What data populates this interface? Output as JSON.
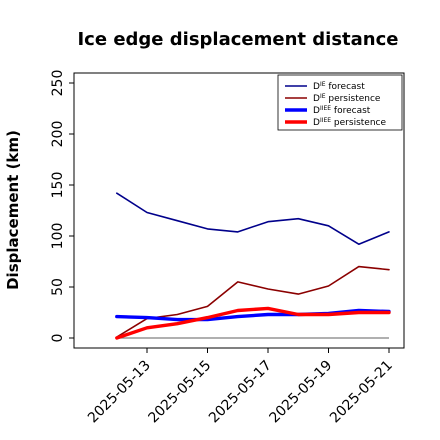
{
  "chart_data": {
    "type": "line",
    "title": "Ice edge displacement distance",
    "ylabel": "Displacement (km)",
    "xlabel": "",
    "ylim": [
      0,
      250
    ],
    "yticks": [
      0,
      50,
      100,
      150,
      200,
      250
    ],
    "x": [
      "2025-05-12",
      "2025-05-13",
      "2025-05-14",
      "2025-05-15",
      "2025-05-16",
      "2025-05-17",
      "2025-05-18",
      "2025-05-19",
      "2025-05-20",
      "2025-05-21"
    ],
    "xticks": [
      {
        "date": "2025-05-13",
        "label": "2025-05-13",
        "color": "#228B22"
      },
      {
        "date": "2025-05-15",
        "label": "2025-05-15",
        "color": "#000000"
      },
      {
        "date": "2025-05-17",
        "label": "2025-05-17",
        "color": "#000000"
      },
      {
        "date": "2025-05-19",
        "label": "2025-05-19",
        "color": "#000000"
      },
      {
        "date": "2025-05-21",
        "label": "2025-05-21",
        "color": "#000000"
      }
    ],
    "grid": false,
    "legend_position": "top-right",
    "series": [
      {
        "key": "die_forecast",
        "label_main": "D",
        "label_sup": "IE",
        "label_rest": " forecast",
        "color": "#00008B",
        "width": 1.6,
        "values": [
          142,
          123,
          115,
          107,
          104,
          114,
          117,
          110,
          92,
          104
        ]
      },
      {
        "key": "die_persistence",
        "label_main": "D",
        "label_sup": "IE",
        "label_rest": " persistence",
        "color": "#8B0000",
        "width": 1.6,
        "values": [
          1,
          19,
          23,
          31,
          55,
          48,
          43,
          51,
          70,
          67
        ]
      },
      {
        "key": "diee_forecast",
        "label_main": "D",
        "label_sup": "IIEE",
        "label_rest": " forecast",
        "color": "#0000FF",
        "width": 3.4,
        "values": [
          21,
          20,
          18,
          18,
          21,
          23,
          23,
          24,
          27,
          26
        ]
      },
      {
        "key": "diee_persistence",
        "label_main": "D",
        "label_sup": "IIEE",
        "label_rest": " persistence",
        "color": "#FF0000",
        "width": 3.4,
        "values": [
          0,
          10,
          14,
          20,
          27,
          29,
          23,
          23,
          25,
          25
        ]
      }
    ],
    "baseline": {
      "y": 0,
      "color": "#808080"
    }
  }
}
